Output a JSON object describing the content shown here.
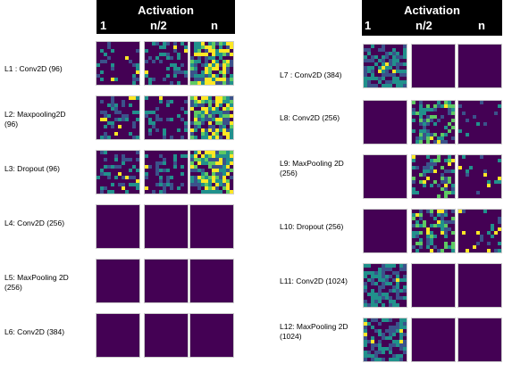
{
  "left_panel": {
    "header": {
      "title": "Activation",
      "cols": [
        "1",
        "n/2",
        "n"
      ]
    },
    "rows": [
      {
        "label": "L1 : Conv2D (96)"
      },
      {
        "label": "L2: Maxpooling2D (96)"
      },
      {
        "label": "L3: Dropout (96)"
      },
      {
        "label": "L4: Conv2D  (256)"
      },
      {
        "label": "L5: MaxPooling 2D (256)"
      },
      {
        "label": "L6: Conv2D (384)"
      }
    ]
  },
  "right_panel": {
    "header": {
      "title": "Activation",
      "cols": [
        "1",
        "n/2",
        "n"
      ]
    },
    "rows": [
      {
        "label": "L7 : Conv2D (384)"
      },
      {
        "label": "L8: Conv2D (256)"
      },
      {
        "label": "L9: MaxPooling 2D (256)"
      },
      {
        "label": "L10: Dropout  (256)"
      },
      {
        "label": "L11: Conv2D (1024)"
      },
      {
        "label": "L12: MaxPooling 2D (1024)"
      }
    ]
  },
  "colors": {
    "dark": "#440154",
    "blue": "#3b528b",
    "teal": "#21918c",
    "green": "#5ec962",
    "yellow": "#fde725"
  }
}
